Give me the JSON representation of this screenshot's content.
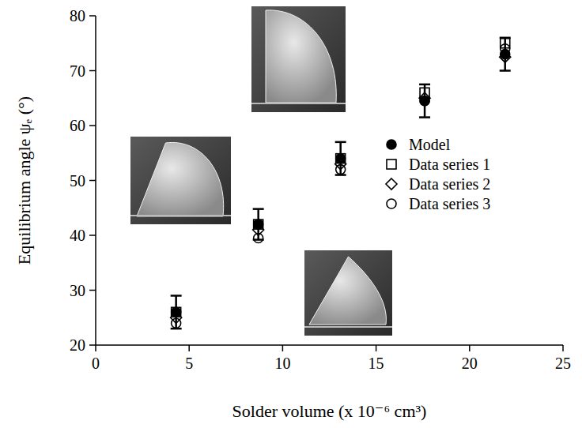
{
  "chart_data": {
    "type": "scatter",
    "x_label": "Solder volume (x 10⁻⁶ cm³)",
    "y_label": "Equilibrium angle ψₑ (°)",
    "x": [
      4.3,
      8.7,
      13.1,
      17.6,
      21.9
    ],
    "series": [
      {
        "name": "Model",
        "color": "#000000",
        "marker": "filled-circle",
        "values": [
          26,
          42,
          54,
          64.5,
          73
        ],
        "error": [
          3,
          2.8,
          3,
          3,
          3
        ]
      },
      {
        "name": "Data series 1",
        "color": "#000000",
        "marker": "open-square",
        "values": [
          26,
          42,
          54,
          66,
          75
        ]
      },
      {
        "name": "Data series 2",
        "color": "#000000",
        "marker": "open-diamond",
        "values": [
          25,
          41,
          53,
          65,
          72.5
        ]
      },
      {
        "name": "Data series 3",
        "color": "#000000",
        "marker": "open-circle",
        "values": [
          24,
          39.5,
          52,
          64.5,
          74
        ]
      }
    ],
    "xlim": [
      0,
      25
    ],
    "xticks": [
      0,
      5,
      10,
      15,
      20,
      25
    ],
    "ylim": [
      20,
      80
    ],
    "yticks": [
      20,
      30,
      40,
      50,
      60,
      70,
      80
    ],
    "legend": "right",
    "grid": false
  }
}
